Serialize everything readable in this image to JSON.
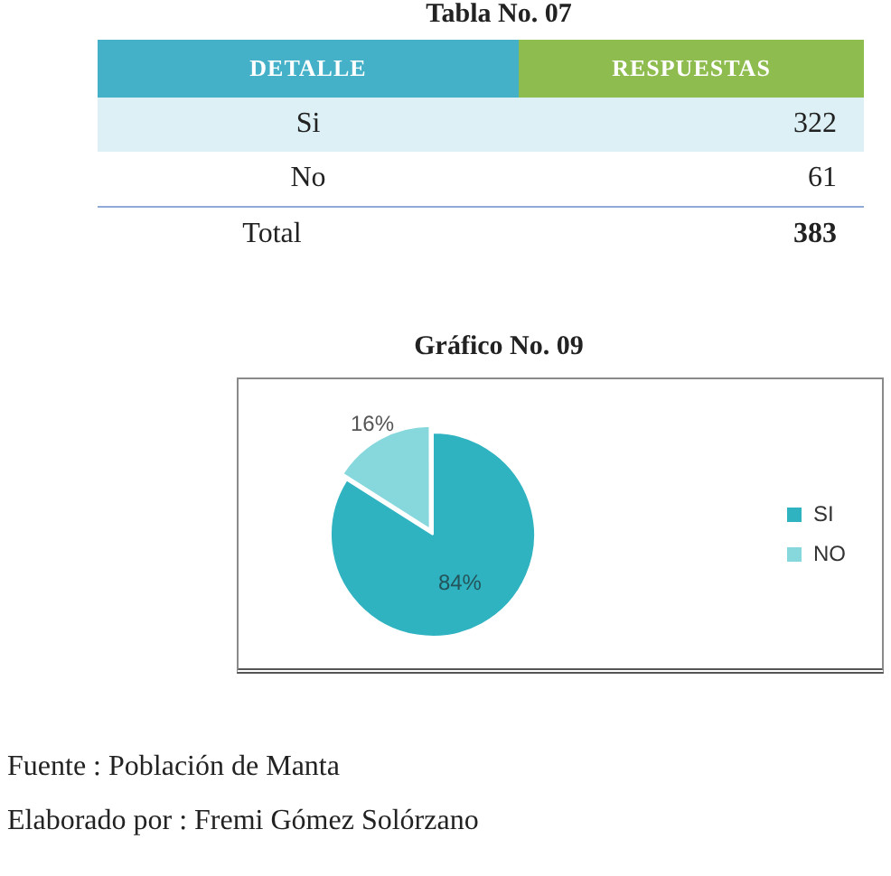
{
  "chart_data": [
    {
      "type": "other",
      "title": "Tabla No. 07",
      "xlabel": "DETALLE",
      "ylabel": "RESPUESTAS",
      "categories": [
        "Si",
        "No",
        "Total"
      ],
      "values": [
        322,
        61,
        383
      ],
      "data_labels": true
    },
    {
      "type": "pie",
      "title": "Gráfico No. 09",
      "categories": [
        "SI",
        "NO"
      ],
      "values": [
        84,
        16
      ],
      "colors": [
        "#2fb3c1",
        "#86d8dd"
      ],
      "value_labels": [
        "84%",
        "16%"
      ],
      "legend": "right",
      "annotations": [
        "Fuente : Población de Manta",
        "Elaborado por : Fremi Gómez Solórzano"
      ]
    }
  ]
}
